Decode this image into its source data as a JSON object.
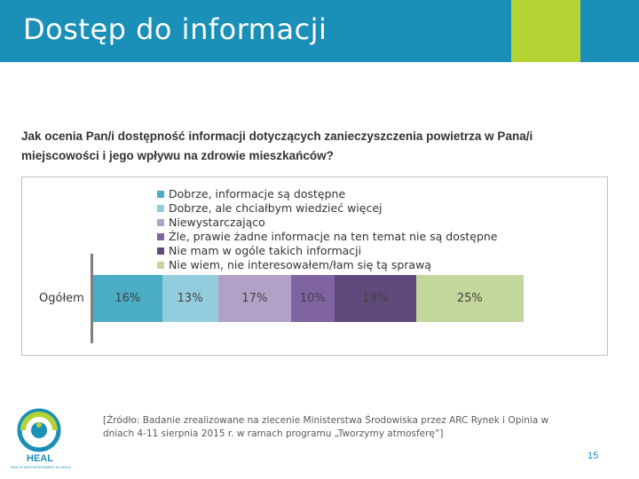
{
  "slide": {
    "title": "Dostęp do informacji",
    "page_number": "15",
    "question_line1": "Jak ocenia Pan/i dostępność informacji dotyczących zanieczyszczenia powietrza w Pana/i",
    "question_line2": "miejscowości i jego wpływu na zdrowie mieszkańców?",
    "source": "[Źródło: Badanie zrealizowane na zlecenie Ministerstwa Środowiska przez ARC Rynek i Opinia w dniach 4-11 sierpnia 2015 r. w ramach programu „Tworzymy atmosferę”]",
    "logo_text": "HEAL",
    "logo_caption": "HEALTH AND ENVIRONMENT ALLIANCE"
  },
  "colors": {
    "header": "#1a8fb8",
    "accent_green": "#b5d334",
    "segments": [
      "#4bacc6",
      "#93cddd",
      "#b2a1c7",
      "#8064a2",
      "#604a7b",
      "#c3d69b"
    ]
  },
  "chart_data": {
    "type": "bar",
    "orientation": "horizontal-stacked-100",
    "categories": [
      "Ogółem"
    ],
    "unit": "%",
    "series": [
      {
        "name": "Dobrze, informacje są dostępne",
        "values": [
          16
        ],
        "label": "16%"
      },
      {
        "name": "Dobrze, ale chciałbym wiedzieć więcej",
        "values": [
          13
        ],
        "label": "13%"
      },
      {
        "name": "Niewystarczająco",
        "values": [
          17
        ],
        "label": "17%"
      },
      {
        "name": "Źle, prawie żadne informacje na ten temat nie są dostępne",
        "values": [
          10
        ],
        "label": "10%"
      },
      {
        "name": "Nie mam w ogóle takich informacji",
        "values": [
          19
        ],
        "label": "19%"
      },
      {
        "name": "Nie wiem, nie interesowałem/łam się tą sprawą",
        "values": [
          25
        ],
        "label": "25%"
      }
    ],
    "legend_position": "top",
    "grid": false
  }
}
